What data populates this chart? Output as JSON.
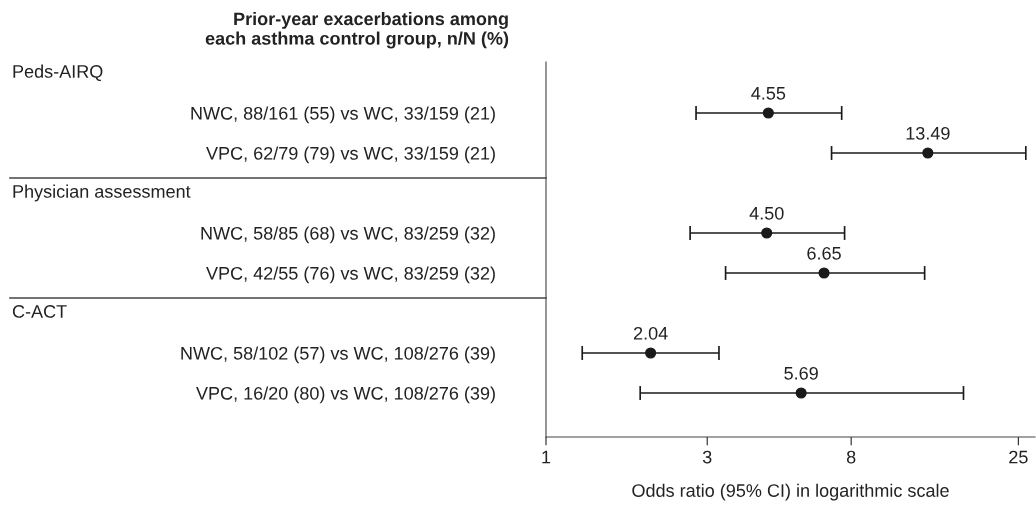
{
  "chart_data": {
    "type": "scatter",
    "orientation": "horizontal",
    "ylabel": "Prior-year exacerbations among\neach asthma control group, n/N (%)",
    "xlabel": "Odds ratio (95% CI) in logarithmic scale",
    "annotations": [
      "Peds-AIRQ",
      "Physician assessment",
      "C-ACT"
    ],
    "categories": [
      null,
      "NWC, 88/161 (55) vs WC, 33/159 (21)",
      "VPC, 62/79 (79) vs WC, 33/159 (21)",
      null,
      "NWC, 58/85 (68) vs WC, 83/259 (32)",
      "VPC, 42/55 (76) vs WC, 83/259 (32)",
      null,
      "NWC, 58/102 (57) vs WC, 108/276 (39)",
      "VPC, 16/20 (80) vs WC, 108/276 (39)"
    ],
    "values": [
      null,
      4.55,
      13.49,
      null,
      4.5,
      6.65,
      null,
      2.04,
      5.69
    ],
    "value_labels": [
      null,
      "4.55",
      "13.49",
      null,
      "4.50",
      "6.65",
      null,
      "2.04",
      "5.69"
    ],
    "errors": [
      null,
      [
        2.78,
        7.5
      ],
      [
        7.0,
        26.3
      ],
      null,
      [
        2.67,
        7.65
      ],
      [
        3.4,
        13.2
      ],
      null,
      [
        1.28,
        3.25
      ],
      [
        1.9,
        17.2
      ]
    ],
    "color": "#1a1a1a",
    "marker": "circle",
    "log": "x",
    "xlim": [
      1,
      28
    ],
    "xticks": [
      1,
      3,
      8,
      25
    ],
    "grid": false,
    "legend": false
  }
}
